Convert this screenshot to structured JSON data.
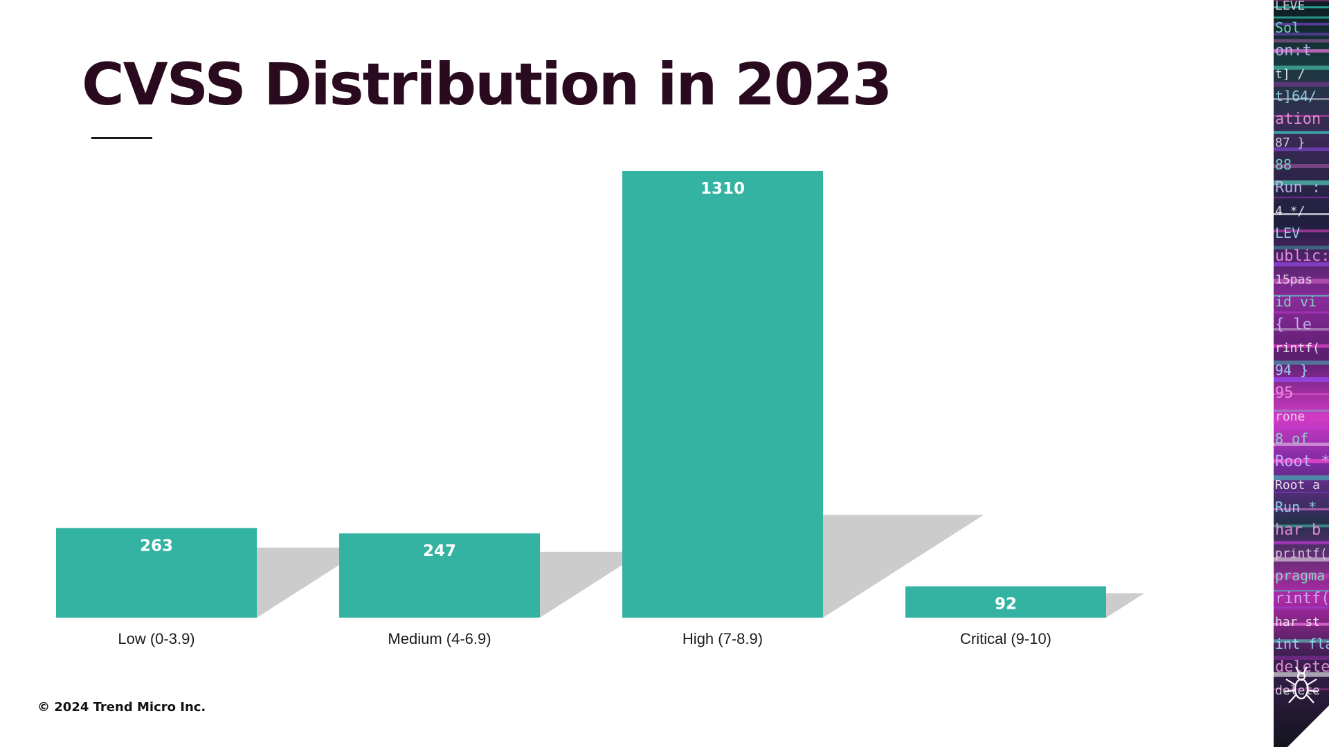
{
  "slide": {
    "title": "CVSS Distribution in 2023",
    "footer": "© 2024 Trend Micro Inc."
  },
  "colors": {
    "bar": "#35b3a2",
    "shadow": "#cccccc",
    "title": "#2a0a1f"
  },
  "chart_data": {
    "type": "bar",
    "title": "CVSS Distribution in 2023",
    "categories": [
      "Low (0-3.9)",
      "Medium (4-6.9)",
      "High (7-8.9)",
      "Critical (9-10)"
    ],
    "values": [
      263,
      247,
      1310,
      92
    ],
    "xlabel": "",
    "ylabel": "",
    "ylim": [
      0,
      1310
    ],
    "grid": false,
    "legend": "none",
    "data_labels": "inside-top"
  },
  "side_strip": {
    "code_text": [
      "LEVE",
      "Sol",
      "on:t",
      "t] /",
      "t]64/",
      "ation",
      "87 }",
      "88",
      "Run :",
      "4 */",
      "LEV",
      "ublic:",
      "15pas",
      "id vi",
      "{ le",
      "rintf(",
      "94 }",
      "95",
      "rone",
      "8 of",
      "Root *b",
      "Root a",
      "Run *",
      "har b",
      "printf(",
      "pragma",
      "rintf(",
      "har st",
      "int fla",
      "delete(",
      "delete"
    ]
  }
}
